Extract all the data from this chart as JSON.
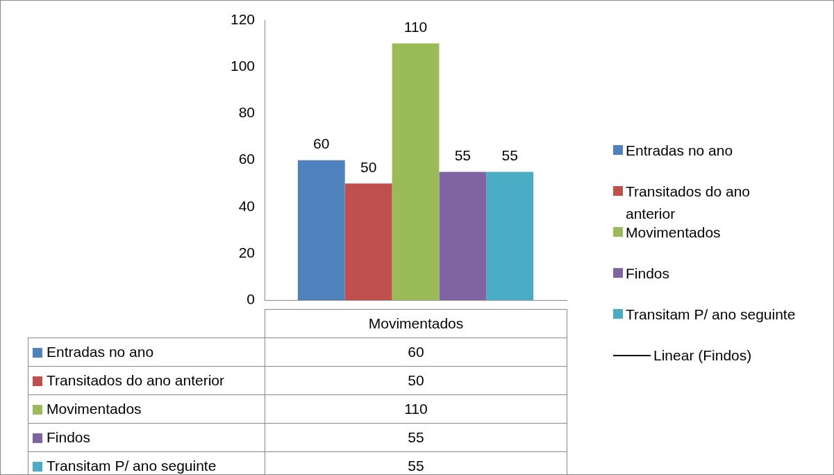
{
  "chart_data": {
    "type": "bar",
    "categories": [
      "Movimentados"
    ],
    "series": [
      {
        "name": "Entradas no ano",
        "color": "#4f81bd",
        "values": [
          60
        ],
        "value_labels": [
          "60"
        ]
      },
      {
        "name": "Transitados do ano anterior",
        "color": "#c0504d",
        "values": [
          50
        ],
        "value_labels": [
          "50"
        ]
      },
      {
        "name": "Movimentados",
        "color": "#9bbb59",
        "values": [
          110
        ],
        "value_labels": [
          "110"
        ]
      },
      {
        "name": "Findos",
        "color": "#8064a2",
        "values": [
          55
        ],
        "value_labels": [
          "55"
        ]
      },
      {
        "name": "Transitam P/ ano seguinte",
        "color": "#4bacc6",
        "values": [
          55
        ],
        "value_labels": [
          "55"
        ]
      },
      {
        "name": "Linear (Findos)",
        "type": "line",
        "color": "#000000",
        "values": [
          null
        ]
      }
    ],
    "ylim": [
      0,
      120
    ],
    "yticks": [
      0,
      20,
      40,
      60,
      80,
      100,
      120
    ],
    "legend": "right"
  }
}
